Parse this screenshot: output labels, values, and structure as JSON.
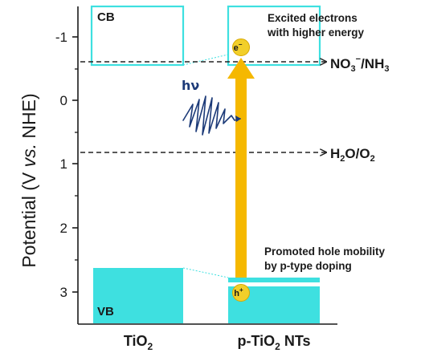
{
  "axis": {
    "title_main": "Potential (V ",
    "title_italic": "vs.",
    "title_end": " NHE)",
    "ticks": [
      "-1",
      "0",
      "1",
      "2",
      "3"
    ]
  },
  "bands": {
    "cb_label": "CB",
    "vb_label": "VB"
  },
  "levels": {
    "nitrate_main": "NO",
    "nitrate_sub": "3",
    "nitrate_sup": "−",
    "nitrate_end": "/NH",
    "nitrate_sub2": "3",
    "water_h": "H",
    "water_sub1": "2",
    "water_mid": "O/O",
    "water_sub2": "2"
  },
  "annotations": {
    "excited_line1": "Excited electrons",
    "excited_line2": "with higher energy",
    "hole_line1": "Promoted hole mobility",
    "hole_line2": "by p-type doping",
    "photon": "hν",
    "electron_base": "e",
    "electron_sup": "−",
    "hole_base": "h",
    "hole_sup": "+"
  },
  "xlabels": {
    "tio2_base": "TiO",
    "tio2_sub": "2",
    "ptio2_base": "p-TiO",
    "ptio2_sub": "2",
    "ptio2_end": " NTs"
  },
  "colors": {
    "band_fill": "#3ee0e0",
    "band_outline": "#3ee0e0",
    "arrow": "#f5b800",
    "carrier": "#f2cf2a",
    "wave": "#1c3a78",
    "dashed": "#222222"
  }
}
